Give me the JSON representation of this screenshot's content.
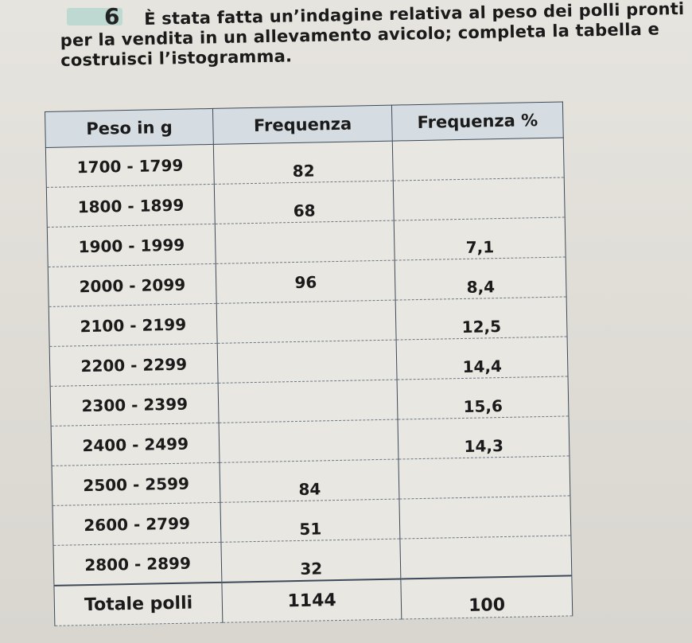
{
  "exercise": {
    "number": "6",
    "text": "È stata fatta un’indagine relativa al peso dei polli pronti per la vendita in un allevamento avicolo; completa la tabella e costruisci l’istogramma."
  },
  "table": {
    "headers": [
      "Peso in g",
      "Frequenza",
      "Frequenza %"
    ],
    "rows": [
      {
        "peso": "1700 - 1799",
        "freq": "82",
        "perc": ""
      },
      {
        "peso": "1800 - 1899",
        "freq": "68",
        "perc": ""
      },
      {
        "peso": "1900 - 1999",
        "freq": "",
        "perc": "7,1"
      },
      {
        "peso": "2000 - 2099",
        "freq": "96",
        "perc": "8,4"
      },
      {
        "peso": "2100 - 2199",
        "freq": "",
        "perc": "12,5"
      },
      {
        "peso": "2200 - 2299",
        "freq": "",
        "perc": "14,4"
      },
      {
        "peso": "2300 - 2399",
        "freq": "",
        "perc": "15,6"
      },
      {
        "peso": "2400 - 2499",
        "freq": "",
        "perc": "14,3"
      },
      {
        "peso": "2500 - 2599",
        "freq": "84",
        "perc": ""
      },
      {
        "peso": "2600 - 2799",
        "freq": "51",
        "perc": ""
      },
      {
        "peso": "2800 - 2899",
        "freq": "32",
        "perc": ""
      }
    ],
    "total": {
      "label": "Totale polli",
      "freq": "1144",
      "perc": "100"
    }
  }
}
